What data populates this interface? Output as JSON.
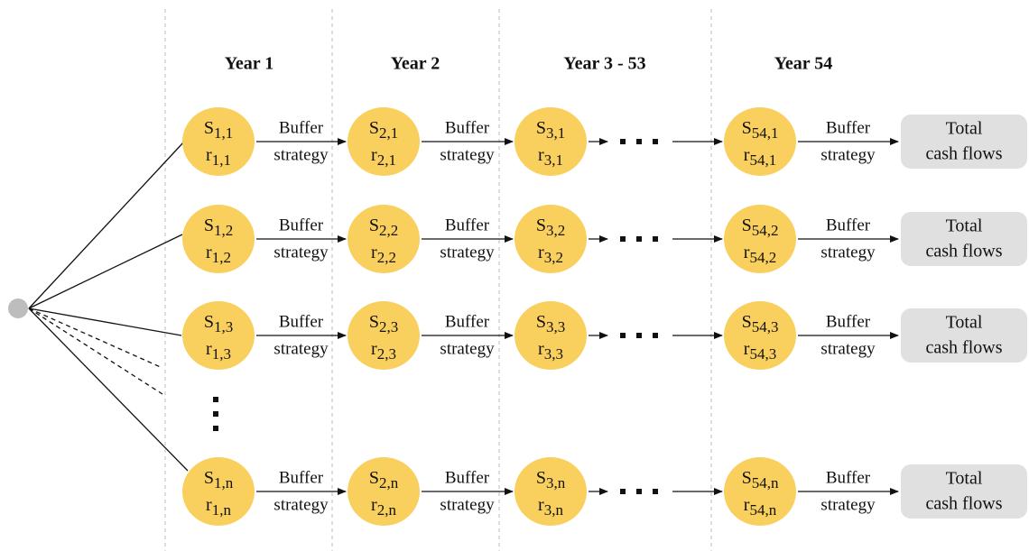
{
  "headers": [
    "Year 1",
    "Year 2",
    "Year 3 - 53",
    "Year 54"
  ],
  "rows": [
    {
      "nodes": [
        {
          "s": "S",
          "s_sub": "1,1",
          "r": "r",
          "r_sub": "1,1"
        },
        {
          "s": "S",
          "s_sub": "2,1",
          "r": "r",
          "r_sub": "2,1"
        },
        {
          "s": "S",
          "s_sub": "3,1",
          "r": "r",
          "r_sub": "3,1"
        },
        {
          "s": "S",
          "s_sub": "54,1",
          "r": "r",
          "r_sub": "54,1"
        }
      ],
      "edges": [
        [
          "Buffer",
          "strategy"
        ],
        [
          "Buffer",
          "strategy"
        ],
        [
          "Buffer",
          "strategy"
        ]
      ],
      "total": [
        "Total",
        "cash flows"
      ]
    },
    {
      "nodes": [
        {
          "s": "S",
          "s_sub": "1,2",
          "r": "r",
          "r_sub": "1,2"
        },
        {
          "s": "S",
          "s_sub": "2,2",
          "r": "r",
          "r_sub": "2,2"
        },
        {
          "s": "S",
          "s_sub": "3,2",
          "r": "r",
          "r_sub": "3,2"
        },
        {
          "s": "S",
          "s_sub": "54,2",
          "r": "r",
          "r_sub": "54,2"
        }
      ],
      "edges": [
        [
          "Buffer",
          "strategy"
        ],
        [
          "Buffer",
          "strategy"
        ],
        [
          "Buffer",
          "strategy"
        ]
      ],
      "total": [
        "Total",
        "cash flows"
      ]
    },
    {
      "nodes": [
        {
          "s": "S",
          "s_sub": "1,3",
          "r": "r",
          "r_sub": "1,3"
        },
        {
          "s": "S",
          "s_sub": "2,3",
          "r": "r",
          "r_sub": "2,3"
        },
        {
          "s": "S",
          "s_sub": "3,3",
          "r": "r",
          "r_sub": "3,3"
        },
        {
          "s": "S",
          "s_sub": "54,3",
          "r": "r",
          "r_sub": "54,3"
        }
      ],
      "edges": [
        [
          "Buffer",
          "strategy"
        ],
        [
          "Buffer",
          "strategy"
        ],
        [
          "Buffer",
          "strategy"
        ]
      ],
      "total": [
        "Total",
        "cash flows"
      ]
    },
    {
      "nodes": [
        {
          "s": "S",
          "s_sub": "1,n",
          "r": "r",
          "r_sub": "1,n"
        },
        {
          "s": "S",
          "s_sub": "2,n",
          "r": "r",
          "r_sub": "2,n"
        },
        {
          "s": "S",
          "s_sub": "3,n",
          "r": "r",
          "r_sub": "3,n"
        },
        {
          "s": "S",
          "s_sub": "54,n",
          "r": "r",
          "r_sub": "54,n"
        }
      ],
      "edges": [
        [
          "Buffer",
          "strategy"
        ],
        [
          "Buffer",
          "strategy"
        ],
        [
          "Buffer",
          "strategy"
        ]
      ],
      "total": [
        "Total",
        "cash flows"
      ]
    }
  ]
}
